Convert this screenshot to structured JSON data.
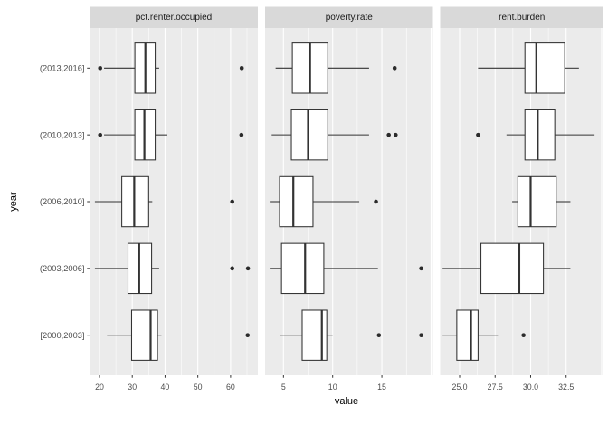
{
  "chart_data": {
    "type": "boxplot",
    "title": "",
    "xlabel": "value",
    "ylabel": "year",
    "y_categories": [
      "(2013,2016]",
      "(2010,2013]",
      "(2006,2010]",
      "(2003,2006]",
      "[2000,2003]"
    ],
    "legend": "none",
    "grid": "on",
    "facets": [
      {
        "label": "pct.renter.occupied",
        "xlim": [
          16.97,
          68.31
        ],
        "ticks": [
          {
            "v": 20,
            "l": "20"
          },
          {
            "v": 30,
            "l": "30"
          },
          {
            "v": 40,
            "l": "40"
          },
          {
            "v": 50,
            "l": "50"
          },
          {
            "v": 60,
            "l": "60"
          }
        ],
        "minor": [
          25,
          35,
          45,
          55,
          65
        ],
        "grid_extra": [],
        "rows": [
          {
            "low_outliers": [
              20.2
            ],
            "whisker_min": 21.4,
            "q1": 30.8,
            "median": 34.0,
            "q3": 37.0,
            "whisker_max": 38.2,
            "high_outliers": [
              63.4
            ]
          },
          {
            "low_outliers": [
              20.2
            ],
            "whisker_min": 21.4,
            "q1": 30.8,
            "median": 33.7,
            "q3": 37.0,
            "whisker_max": 40.7,
            "high_outliers": [
              63.3
            ]
          },
          {
            "low_outliers": [],
            "whisker_min": 18.6,
            "q1": 26.8,
            "median": 30.6,
            "q3": 35.0,
            "whisker_max": 36.1,
            "high_outliers": [
              60.5
            ]
          },
          {
            "low_outliers": [],
            "whisker_min": 18.6,
            "q1": 28.7,
            "median": 32.1,
            "q3": 35.9,
            "whisker_max": 38.2,
            "high_outliers": [
              60.5,
              65.3
            ]
          },
          {
            "low_outliers": [],
            "whisker_min": 22.3,
            "q1": 29.8,
            "median": 35.6,
            "q3": 37.7,
            "whisker_max": 38.9,
            "high_outliers": [
              65.2
            ]
          }
        ]
      },
      {
        "label": "poverty.rate",
        "xlim": [
          3.13,
          20.19
        ],
        "ticks": [
          {
            "v": 5,
            "l": "5"
          },
          {
            "v": 10,
            "l": "10"
          },
          {
            "v": 15,
            "l": "15"
          }
        ],
        "minor": [
          7.5,
          12.5,
          17.5
        ],
        "grid_extra": [
          20
        ],
        "rows": [
          {
            "low_outliers": [],
            "whisker_min": 4.2,
            "q1": 5.9,
            "median": 7.7,
            "q3": 9.5,
            "whisker_max": 13.7,
            "high_outliers": [
              16.3
            ]
          },
          {
            "low_outliers": [],
            "whisker_min": 3.8,
            "q1": 5.8,
            "median": 7.5,
            "q3": 9.5,
            "whisker_max": 13.7,
            "high_outliers": [
              15.7,
              16.4
            ]
          },
          {
            "low_outliers": [],
            "whisker_min": 3.6,
            "q1": 4.6,
            "median": 6.0,
            "q3": 8.0,
            "whisker_max": 12.7,
            "high_outliers": [
              14.4
            ]
          },
          {
            "low_outliers": [],
            "whisker_min": 3.6,
            "q1": 4.8,
            "median": 7.2,
            "q3": 9.1,
            "whisker_max": 14.6,
            "high_outliers": [
              19.0
            ]
          },
          {
            "low_outliers": [],
            "whisker_min": 4.6,
            "q1": 6.9,
            "median": 8.9,
            "q3": 9.4,
            "whisker_max": 10.0,
            "high_outliers": [
              14.7,
              19.0
            ]
          }
        ]
      },
      {
        "label": "rent.burden",
        "xlim": [
          23.63,
          35.13
        ],
        "ticks": [
          {
            "v": 25,
            "l": "25.0"
          },
          {
            "v": 27.5,
            "l": "27.5"
          },
          {
            "v": 30,
            "l": "30.0"
          },
          {
            "v": 32.5,
            "l": "32.5"
          }
        ],
        "minor": [
          23.75,
          26.25,
          28.75,
          31.25,
          33.75
        ],
        "grid_extra": [
          35
        ],
        "rows": [
          {
            "low_outliers": [],
            "whisker_min": 26.3,
            "q1": 29.6,
            "median": 30.4,
            "q3": 32.4,
            "whisker_max": 33.4,
            "high_outliers": []
          },
          {
            "low_outliers": [
              26.3
            ],
            "whisker_min": 28.3,
            "q1": 29.6,
            "median": 30.5,
            "q3": 31.7,
            "whisker_max": 34.5,
            "high_outliers": []
          },
          {
            "low_outliers": [],
            "whisker_min": 28.7,
            "q1": 29.1,
            "median": 30.0,
            "q3": 31.8,
            "whisker_max": 32.8,
            "high_outliers": []
          },
          {
            "low_outliers": [],
            "whisker_min": 23.8,
            "q1": 26.5,
            "median": 29.2,
            "q3": 30.9,
            "whisker_max": 32.8,
            "high_outliers": []
          },
          {
            "low_outliers": [],
            "whisker_min": 23.8,
            "q1": 24.8,
            "median": 25.8,
            "q3": 26.3,
            "whisker_max": 27.7,
            "high_outliers": [
              29.5
            ]
          }
        ]
      }
    ],
    "colors": {
      "panel_background": "#EBEBEB",
      "strip_background": "#D9D9D9",
      "grid_line": "#FFFFFF",
      "box_stroke": "#333333",
      "box_fill": "#FFFFFF",
      "outlier_fill": "#2B2B2B",
      "tick_mark": "#333333",
      "tick_label": "#4D4D4D",
      "strip_text": "#1A1A1A",
      "axis_title": "#000000"
    }
  }
}
